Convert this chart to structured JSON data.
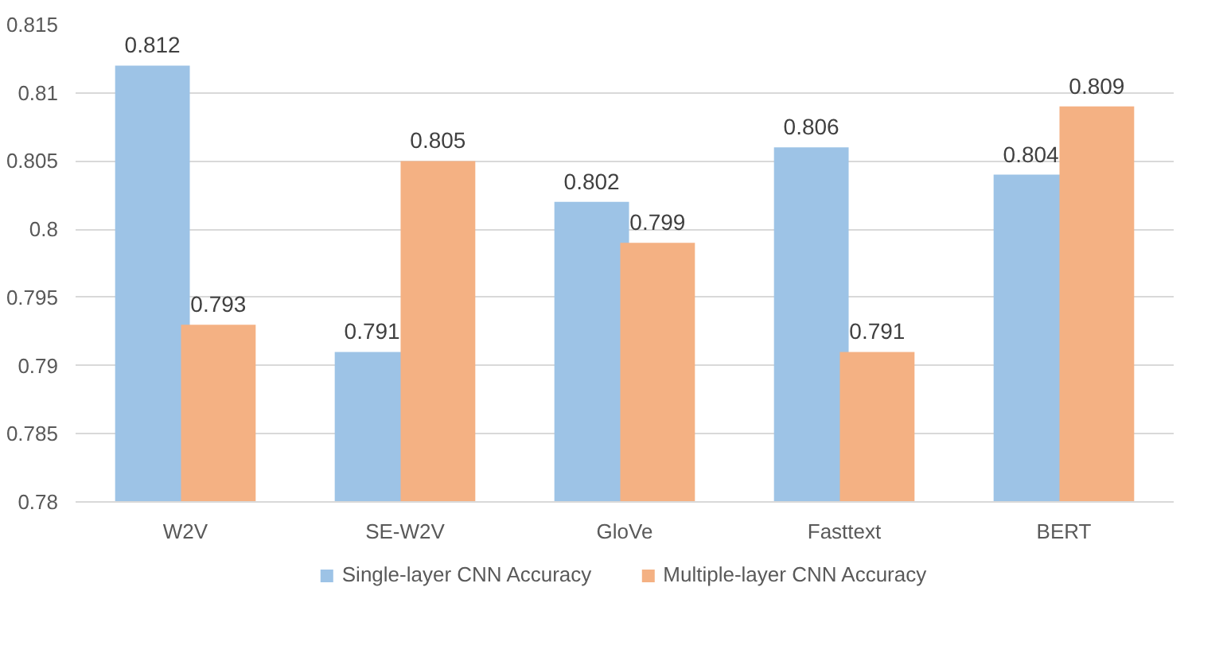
{
  "chart_data": {
    "type": "bar",
    "categories": [
      "W2V",
      "SE-W2V",
      "GloVe",
      "Fasttext",
      "BERT"
    ],
    "series": [
      {
        "name": "Single-layer CNN Accuracy",
        "color": "#9dc3e6",
        "values": [
          0.812,
          0.791,
          0.802,
          0.806,
          0.804
        ]
      },
      {
        "name": "Multiple-layer CNN Accuracy",
        "color": "#f4b183",
        "values": [
          0.793,
          0.805,
          0.799,
          0.791,
          0.809
        ]
      }
    ],
    "ylim": [
      0.78,
      0.815
    ],
    "yticks": [
      0.78,
      0.785,
      0.79,
      0.795,
      0.8,
      0.805,
      0.81,
      0.815
    ],
    "grid": "y",
    "legend": "bottom",
    "data_labels": true
  }
}
